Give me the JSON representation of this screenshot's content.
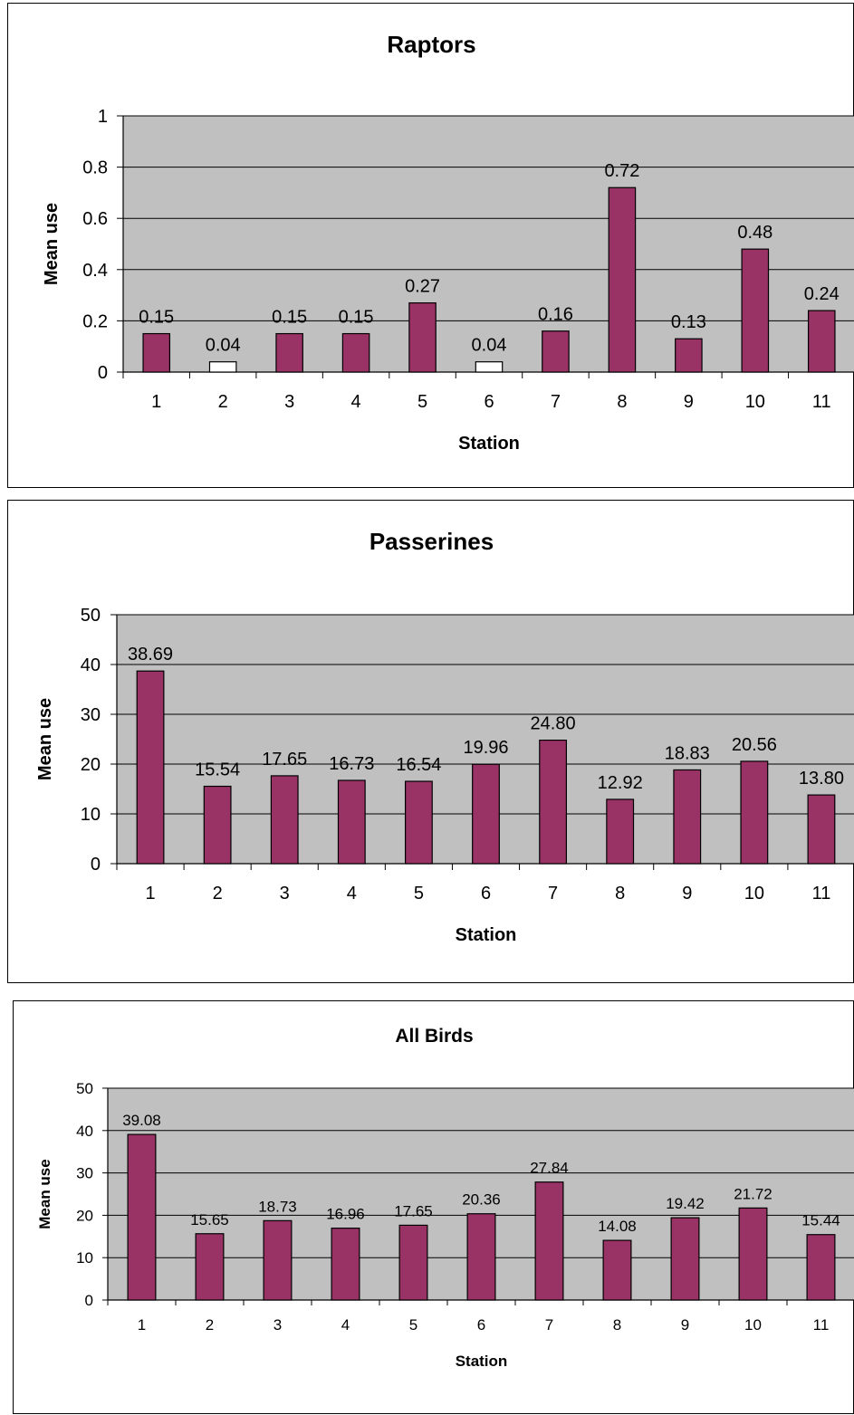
{
  "colors": {
    "bar_fill": "#993366",
    "bar_fill_low": "#ffffff",
    "bar_stroke": "#000000",
    "plot_bg": "#c0c0c0",
    "gridline": "#000000"
  },
  "chart_data": [
    {
      "type": "bar",
      "title": "Raptors",
      "xlabel": "Station",
      "ylabel": "Mean use",
      "categories": [
        "1",
        "2",
        "3",
        "4",
        "5",
        "6",
        "7",
        "8",
        "9",
        "10",
        "11"
      ],
      "values": [
        0.15,
        0.04,
        0.15,
        0.15,
        0.27,
        0.04,
        0.16,
        0.72,
        0.13,
        0.48,
        0.24
      ],
      "value_labels": [
        "0.15",
        "0.04",
        "0.15",
        "0.15",
        "0.27",
        "0.04",
        "0.16",
        "0.72",
        "0.13",
        "0.48",
        "0.24"
      ],
      "ylim": [
        0,
        1
      ],
      "yticks": [
        0,
        0.2,
        0.4,
        0.6,
        0.8,
        1
      ],
      "ytick_labels": [
        "0",
        "0.2",
        "0.4",
        "0.6",
        "0.8",
        "1"
      ],
      "grid": true
    },
    {
      "type": "bar",
      "title": "Passerines",
      "xlabel": "Station",
      "ylabel": "Mean use",
      "categories": [
        "1",
        "2",
        "3",
        "4",
        "5",
        "6",
        "7",
        "8",
        "9",
        "10",
        "11"
      ],
      "values": [
        38.69,
        15.54,
        17.65,
        16.73,
        16.54,
        19.96,
        24.8,
        12.92,
        18.83,
        20.56,
        13.8
      ],
      "value_labels": [
        "38.69",
        "15.54",
        "17.65",
        "16.73",
        "16.54",
        "19.96",
        "24.80",
        "12.92",
        "18.83",
        "20.56",
        "13.80"
      ],
      "ylim": [
        0,
        50
      ],
      "yticks": [
        0,
        10,
        20,
        30,
        40,
        50
      ],
      "ytick_labels": [
        "0",
        "10",
        "20",
        "30",
        "40",
        "50"
      ],
      "grid": true
    },
    {
      "type": "bar",
      "title": "All Birds",
      "xlabel": "Station",
      "ylabel": "Mean use",
      "categories": [
        "1",
        "2",
        "3",
        "4",
        "5",
        "6",
        "7",
        "8",
        "9",
        "10",
        "11"
      ],
      "values": [
        39.08,
        15.65,
        18.73,
        16.96,
        17.65,
        20.36,
        27.84,
        14.08,
        19.42,
        21.72,
        15.44
      ],
      "value_labels": [
        "39.08",
        "15.65",
        "18.73",
        "16.96",
        "17.65",
        "20.36",
        "27.84",
        "14.08",
        "19.42",
        "21.72",
        "15.44"
      ],
      "ylim": [
        0,
        50
      ],
      "yticks": [
        0,
        10,
        20,
        30,
        40,
        50
      ],
      "ytick_labels": [
        "0",
        "10",
        "20",
        "30",
        "40",
        "50"
      ],
      "grid": true
    }
  ]
}
